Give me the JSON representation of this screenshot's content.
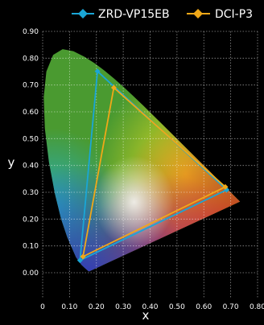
{
  "chart_data": {
    "type": "scatter",
    "title": "",
    "xlabel": "x",
    "ylabel": "y",
    "xlim": [
      0,
      0.8
    ],
    "ylim": [
      0.0,
      0.9
    ],
    "x_ticks": [
      "0",
      "0.10",
      "0.20",
      "0.30",
      "0.40",
      "0.50",
      "0.60",
      "0.70",
      "0.80"
    ],
    "y_ticks": [
      "0.00",
      "0.10",
      "0.20",
      "0.30",
      "0.40",
      "0.50",
      "0.60",
      "0.70",
      "0.80",
      "0.90"
    ],
    "grid": true,
    "legend_position": "top-right",
    "background": "CIE 1931 chromaticity diagram",
    "series": [
      {
        "name": "ZRD-VP15EB",
        "color": "#1aa6d6",
        "marker": "diamond",
        "points": [
          [
            0.685,
            0.309
          ],
          [
            0.204,
            0.751
          ],
          [
            0.139,
            0.046
          ]
        ],
        "closed": true
      },
      {
        "name": "DCI-P3",
        "color": "#f0a818",
        "marker": "diamond",
        "points": [
          [
            0.68,
            0.32
          ],
          [
            0.265,
            0.69
          ],
          [
            0.15,
            0.06
          ]
        ],
        "closed": true
      }
    ]
  }
}
